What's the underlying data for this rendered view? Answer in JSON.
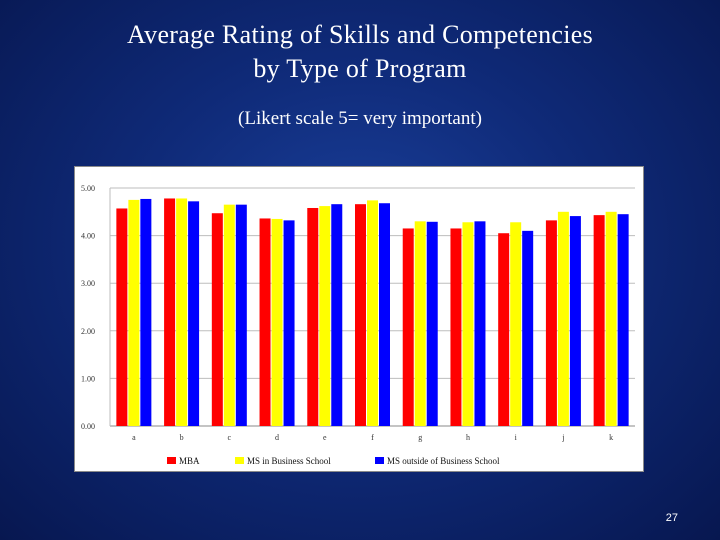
{
  "slide": {
    "title_line1": "Average Rating of Skills and Competencies",
    "title_line2": "by Type of Program",
    "subtitle": "(Likert scale 5= very important)",
    "page_number": "27"
  },
  "colors": {
    "background": "#0f2a78",
    "mba": "#ff0000",
    "ms_in_business_school": "#ffff00",
    "ms_outside_business_school": "#0000ff"
  },
  "chart_data": {
    "type": "bar",
    "title": "",
    "xlabel": "",
    "ylabel": "",
    "categories": [
      "a",
      "b",
      "c",
      "d",
      "e",
      "f",
      "g",
      "h",
      "i",
      "j",
      "k"
    ],
    "ylim": [
      0,
      5
    ],
    "yticks": [
      "0.00",
      "1.00",
      "2.00",
      "3.00",
      "4.00",
      "5.00"
    ],
    "grid": true,
    "legend_position": "bottom",
    "series": [
      {
        "name": "MBA",
        "color": "#ff0000",
        "values": [
          4.57,
          4.78,
          4.47,
          4.36,
          4.58,
          4.66,
          4.15,
          4.15,
          4.05,
          4.32,
          4.43
        ]
      },
      {
        "name": "MS in Business School",
        "color": "#ffff00",
        "values": [
          4.75,
          4.78,
          4.65,
          4.35,
          4.62,
          4.74,
          4.3,
          4.28,
          4.28,
          4.5,
          4.5
        ]
      },
      {
        "name": "MS outside of Business School",
        "color": "#0000ff",
        "values": [
          4.77,
          4.72,
          4.65,
          4.32,
          4.66,
          4.68,
          4.29,
          4.3,
          4.1,
          4.41,
          4.45
        ]
      }
    ]
  }
}
